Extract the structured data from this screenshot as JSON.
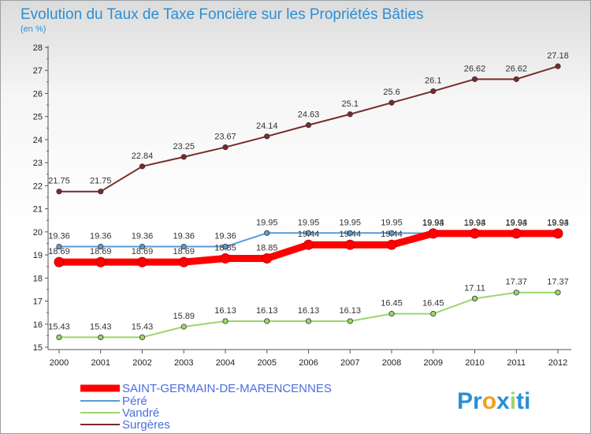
{
  "chart_data": {
    "type": "line",
    "title": "Evolution du Taux de Taxe Foncière sur les Propriétés Bâties",
    "subtitle": "(en %)",
    "x": [
      "2000",
      "2001",
      "2002",
      "2003",
      "2004",
      "2005",
      "2006",
      "2007",
      "2008",
      "2009",
      "2010",
      "2011",
      "2012"
    ],
    "yticks": [
      "15",
      "16",
      "17",
      "18",
      "19",
      "20",
      "21",
      "22",
      "23",
      "24",
      "25",
      "26",
      "27",
      "28"
    ],
    "ylim": [
      15,
      28
    ],
    "grid": false,
    "legend_position": "bottom-left",
    "series": [
      {
        "name": "SAINT-GERMAIN-DE-MARENCENNES",
        "color": "#ff0000",
        "values": [
          18.69,
          18.69,
          18.69,
          18.69,
          18.85,
          18.85,
          19.44,
          19.44,
          19.44,
          19.93,
          19.93,
          19.93,
          19.93
        ],
        "labels": [
          "18.69",
          "18.69",
          "18.69",
          "18.69",
          "18.85",
          "18.85",
          "19.44",
          "19.44",
          "19.44",
          "19.93",
          "19.93",
          "19.93",
          "19.93"
        ]
      },
      {
        "name": "Péré",
        "color": "#5a9bd5",
        "values": [
          19.36,
          19.36,
          19.36,
          19.36,
          19.36,
          19.95,
          19.95,
          19.95,
          19.95,
          19.94,
          19.94,
          19.94,
          19.94
        ],
        "labels": [
          "19.36",
          "19.36",
          "19.36",
          "19.36",
          "19.36",
          "19.95",
          "19.95",
          "19.95",
          "19.95",
          "19.94",
          "19.94",
          "19.94",
          "19.94"
        ]
      },
      {
        "name": "Vandré",
        "color": "#9cd66b",
        "values": [
          15.43,
          15.43,
          15.43,
          15.89,
          16.13,
          16.13,
          16.13,
          16.13,
          16.45,
          16.45,
          17.11,
          17.37,
          17.37
        ],
        "labels": [
          "15.43",
          "15.43",
          "15.43",
          "15.89",
          "16.13",
          "16.13",
          "16.13",
          "16.13",
          "16.45",
          "16.45",
          "17.11",
          "17.37",
          "17.37"
        ]
      },
      {
        "name": "Surgères",
        "color": "#7a2a2a",
        "values": [
          21.75,
          21.75,
          22.84,
          23.25,
          23.67,
          24.14,
          24.63,
          25.1,
          25.6,
          26.1,
          26.62,
          26.62,
          27.18
        ],
        "labels": [
          "21.75",
          "21.75",
          "22.84",
          "23.25",
          "23.67",
          "24.14",
          "24.63",
          "25.1",
          "25.6",
          "26.1",
          "26.62",
          "26.62",
          "27.18"
        ]
      }
    ]
  },
  "logo": {
    "parts": [
      {
        "text": "Pr",
        "color": "#2a8fd6"
      },
      {
        "text": "o",
        "color": "#f0a020"
      },
      {
        "text": "x",
        "color": "#2a8fd6"
      },
      {
        "text": "i",
        "color": "#9cd66b"
      },
      {
        "text": "ti",
        "color": "#2a8fd6"
      }
    ]
  }
}
